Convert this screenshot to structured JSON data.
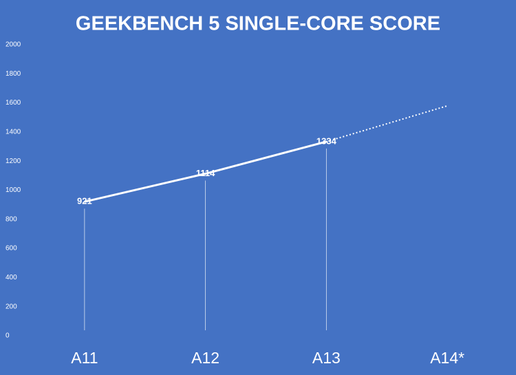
{
  "chart_data": {
    "type": "line",
    "title": "GEEKBENCH 5 SINGLE-CORE SCORE",
    "categories": [
      "A11",
      "A12",
      "A13",
      "A14*"
    ],
    "series": [
      {
        "values": [
          921,
          1114,
          1334,
          null
        ],
        "color": "#ffffff",
        "style": "solid",
        "data_labels": true,
        "drop_lines": true
      },
      {
        "values": [
          null,
          null,
          1334,
          1580
        ],
        "color": "#ffffff",
        "style": "dotted",
        "data_labels": false,
        "drop_lines": false
      }
    ],
    "ylim": [
      0,
      2000
    ],
    "yticks": [
      0,
      200,
      400,
      600,
      800,
      1000,
      1200,
      1400,
      1600,
      1800,
      2000
    ],
    "grid": false
  }
}
